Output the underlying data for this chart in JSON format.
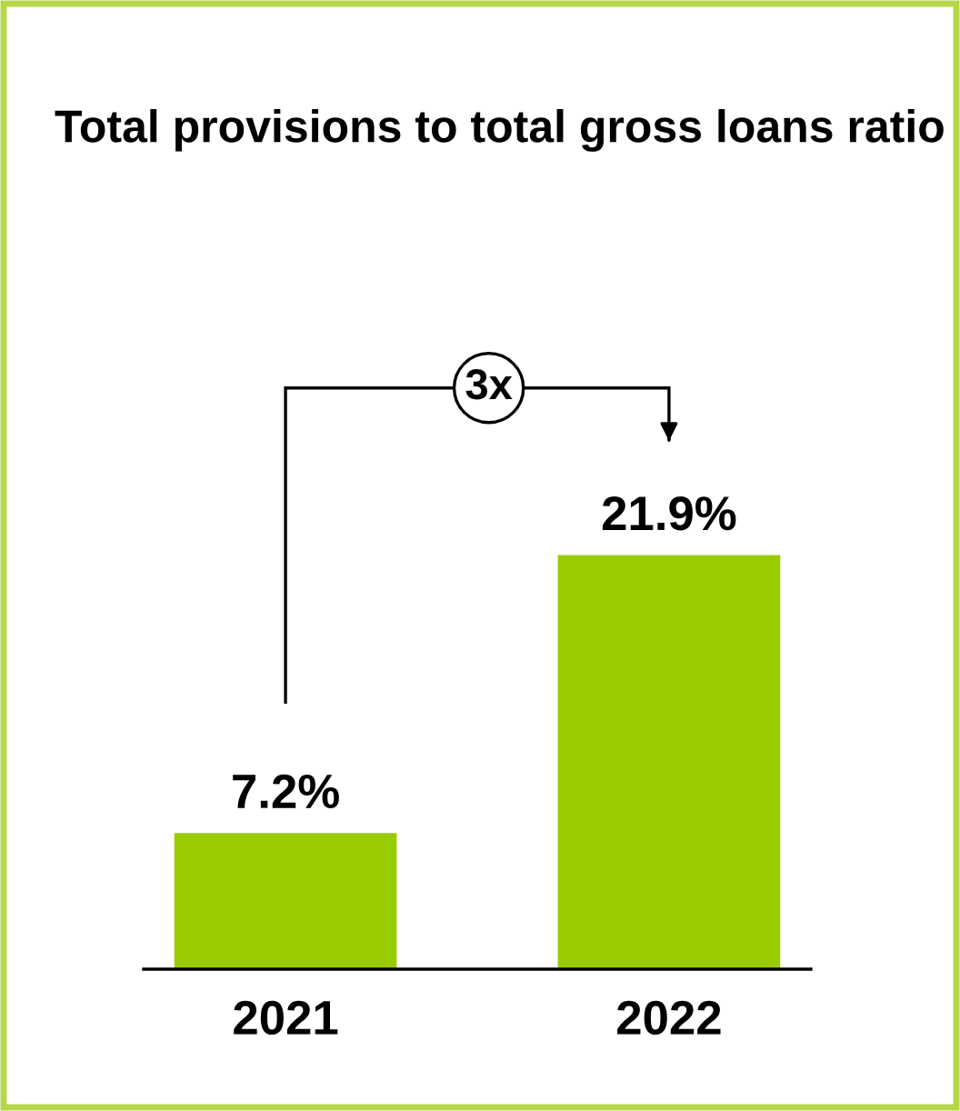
{
  "chart_data": {
    "type": "bar",
    "title": "Total provisions to total gross loans ratio",
    "categories": [
      "2021",
      "2022"
    ],
    "values": [
      7.2,
      21.9
    ],
    "value_labels": [
      "7.2%",
      "21.9%"
    ],
    "color": "#99cc00",
    "annotations": [
      "3x"
    ],
    "grid": false,
    "legend": false
  }
}
